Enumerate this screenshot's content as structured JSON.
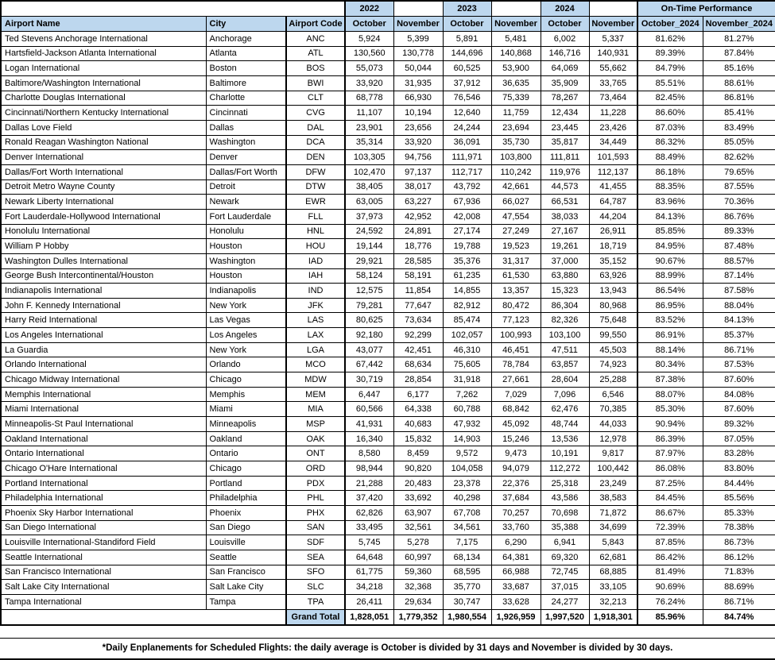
{
  "table": {
    "header": {
      "airport_name": "Airport Name",
      "city": "City",
      "airport_code": "Airport Code",
      "years": [
        "2022",
        "2023",
        "2024"
      ],
      "months": [
        "October",
        "November"
      ],
      "otp_group": "On-Time Performance",
      "otp_cols": [
        "October_2024",
        "November_2024"
      ]
    },
    "rows": [
      {
        "name": "Ted Stevens Anchorage International",
        "city": "Anchorage",
        "code": "ANC",
        "values": [
          "5,924",
          "5,399",
          "5,891",
          "5,481",
          "6,002",
          "5,337"
        ],
        "otp": [
          "81.62%",
          "81.27%"
        ]
      },
      {
        "name": "Hartsfield-Jackson Atlanta International",
        "city": "Atlanta",
        "code": "ATL",
        "values": [
          "130,560",
          "130,778",
          "144,696",
          "140,868",
          "146,716",
          "140,931"
        ],
        "otp": [
          "89.39%",
          "87.84%"
        ]
      },
      {
        "name": "Logan International",
        "city": "Boston",
        "code": "BOS",
        "values": [
          "55,073",
          "50,044",
          "60,525",
          "53,900",
          "64,069",
          "55,662"
        ],
        "otp": [
          "84.79%",
          "85.16%"
        ]
      },
      {
        "name": "Baltimore/Washington International",
        "city": "Baltimore",
        "code": "BWI",
        "values": [
          "33,920",
          "31,935",
          "37,912",
          "36,635",
          "35,909",
          "33,765"
        ],
        "otp": [
          "85.51%",
          "88.61%"
        ]
      },
      {
        "name": "Charlotte Douglas International",
        "city": "Charlotte",
        "code": "CLT",
        "values": [
          "68,778",
          "66,930",
          "76,546",
          "75,339",
          "78,267",
          "73,464"
        ],
        "otp": [
          "82.45%",
          "86.81%"
        ]
      },
      {
        "name": "Cincinnati/Northern Kentucky International",
        "city": "Cincinnati",
        "code": "CVG",
        "values": [
          "11,107",
          "10,194",
          "12,640",
          "11,759",
          "12,434",
          "11,228"
        ],
        "otp": [
          "86.60%",
          "85.41%"
        ]
      },
      {
        "name": "Dallas Love Field",
        "city": "Dallas",
        "code": "DAL",
        "values": [
          "23,901",
          "23,656",
          "24,244",
          "23,694",
          "23,445",
          "23,426"
        ],
        "otp": [
          "87.03%",
          "83.49%"
        ]
      },
      {
        "name": "Ronald Reagan Washington National",
        "city": "Washington",
        "code": "DCA",
        "values": [
          "35,314",
          "33,920",
          "36,091",
          "35,730",
          "35,817",
          "34,449"
        ],
        "otp": [
          "86.32%",
          "85.05%"
        ]
      },
      {
        "name": "Denver International",
        "city": "Denver",
        "code": "DEN",
        "values": [
          "103,305",
          "94,756",
          "111,971",
          "103,800",
          "111,811",
          "101,593"
        ],
        "otp": [
          "88.49%",
          "82.62%"
        ]
      },
      {
        "name": "Dallas/Fort Worth International",
        "city": "Dallas/Fort Worth",
        "code": "DFW",
        "values": [
          "102,470",
          "97,137",
          "112,717",
          "110,242",
          "119,976",
          "112,137"
        ],
        "otp": [
          "86.18%",
          "79.65%"
        ]
      },
      {
        "name": "Detroit Metro Wayne County",
        "city": "Detroit",
        "code": "DTW",
        "values": [
          "38,405",
          "38,017",
          "43,792",
          "42,661",
          "44,573",
          "41,455"
        ],
        "otp": [
          "88.35%",
          "87.55%"
        ]
      },
      {
        "name": "Newark Liberty International",
        "city": "Newark",
        "code": "EWR",
        "values": [
          "63,005",
          "63,227",
          "67,936",
          "66,027",
          "66,531",
          "64,787"
        ],
        "otp": [
          "83.96%",
          "70.36%"
        ]
      },
      {
        "name": "Fort Lauderdale-Hollywood International",
        "city": "Fort Lauderdale",
        "code": "FLL",
        "values": [
          "37,973",
          "42,952",
          "42,008",
          "47,554",
          "38,033",
          "44,204"
        ],
        "otp": [
          "84.13%",
          "86.76%"
        ]
      },
      {
        "name": "Honolulu International",
        "city": "Honolulu",
        "code": "HNL",
        "values": [
          "24,592",
          "24,891",
          "27,174",
          "27,249",
          "27,167",
          "26,911"
        ],
        "otp": [
          "85.85%",
          "89.33%"
        ]
      },
      {
        "name": "William P Hobby",
        "city": "Houston",
        "code": "HOU",
        "values": [
          "19,144",
          "18,776",
          "19,788",
          "19,523",
          "19,261",
          "18,719"
        ],
        "otp": [
          "84.95%",
          "87.48%"
        ]
      },
      {
        "name": "Washington Dulles International",
        "city": "Washington",
        "code": "IAD",
        "values": [
          "29,921",
          "28,585",
          "35,376",
          "31,317",
          "37,000",
          "35,152"
        ],
        "otp": [
          "90.67%",
          "88.57%"
        ]
      },
      {
        "name": "George Bush Intercontinental/Houston",
        "city": "Houston",
        "code": "IAH",
        "values": [
          "58,124",
          "58,191",
          "61,235",
          "61,530",
          "63,880",
          "63,926"
        ],
        "otp": [
          "88.99%",
          "87.14%"
        ]
      },
      {
        "name": "Indianapolis International",
        "city": "Indianapolis",
        "code": "IND",
        "values": [
          "12,575",
          "11,854",
          "14,855",
          "13,357",
          "15,323",
          "13,943"
        ],
        "otp": [
          "86.54%",
          "87.58%"
        ]
      },
      {
        "name": "John F. Kennedy International",
        "city": "New York",
        "code": "JFK",
        "values": [
          "79,281",
          "77,647",
          "82,912",
          "80,472",
          "86,304",
          "80,968"
        ],
        "otp": [
          "86.95%",
          "88.04%"
        ]
      },
      {
        "name": "Harry Reid International",
        "city": "Las Vegas",
        "code": "LAS",
        "values": [
          "80,625",
          "73,634",
          "85,474",
          "77,123",
          "82,326",
          "75,648"
        ],
        "otp": [
          "83.52%",
          "84.13%"
        ]
      },
      {
        "name": "Los Angeles International",
        "city": "Los Angeles",
        "code": "LAX",
        "values": [
          "92,180",
          "92,299",
          "102,057",
          "100,993",
          "103,100",
          "99,550"
        ],
        "otp": [
          "86.91%",
          "85.37%"
        ]
      },
      {
        "name": "La Guardia",
        "city": "New York",
        "code": "LGA",
        "values": [
          "43,077",
          "42,451",
          "46,310",
          "46,451",
          "47,511",
          "45,503"
        ],
        "otp": [
          "88.14%",
          "86.71%"
        ]
      },
      {
        "name": "Orlando International",
        "city": "Orlando",
        "code": "MCO",
        "values": [
          "67,442",
          "68,634",
          "75,605",
          "78,784",
          "63,857",
          "74,923"
        ],
        "otp": [
          "80.34%",
          "87.53%"
        ]
      },
      {
        "name": "Chicago Midway International",
        "city": "Chicago",
        "code": "MDW",
        "values": [
          "30,719",
          "28,854",
          "31,918",
          "27,661",
          "28,604",
          "25,288"
        ],
        "otp": [
          "87.38%",
          "87.60%"
        ]
      },
      {
        "name": "Memphis International",
        "city": "Memphis",
        "code": "MEM",
        "values": [
          "6,447",
          "6,177",
          "7,262",
          "7,029",
          "7,096",
          "6,546"
        ],
        "otp": [
          "88.07%",
          "84.08%"
        ]
      },
      {
        "name": "Miami International",
        "city": "Miami",
        "code": "MIA",
        "values": [
          "60,566",
          "64,338",
          "60,788",
          "68,842",
          "62,476",
          "70,385"
        ],
        "otp": [
          "85.30%",
          "87.60%"
        ]
      },
      {
        "name": "Minneapolis-St Paul International",
        "city": "Minneapolis",
        "code": "MSP",
        "values": [
          "41,931",
          "40,683",
          "47,932",
          "45,092",
          "48,744",
          "44,033"
        ],
        "otp": [
          "90.94%",
          "89.32%"
        ]
      },
      {
        "name": "Oakland International",
        "city": "Oakland",
        "code": "OAK",
        "values": [
          "16,340",
          "15,832",
          "14,903",
          "15,246",
          "13,536",
          "12,978"
        ],
        "otp": [
          "86.39%",
          "87.05%"
        ]
      },
      {
        "name": "Ontario International",
        "city": "Ontario",
        "code": "ONT",
        "values": [
          "8,580",
          "8,459",
          "9,572",
          "9,473",
          "10,191",
          "9,817"
        ],
        "otp": [
          "87.97%",
          "83.28%"
        ]
      },
      {
        "name": "Chicago O'Hare International",
        "city": "Chicago",
        "code": "ORD",
        "values": [
          "98,944",
          "90,820",
          "104,058",
          "94,079",
          "112,272",
          "100,442"
        ],
        "otp": [
          "86.08%",
          "83.80%"
        ]
      },
      {
        "name": "Portland International",
        "city": "Portland",
        "code": "PDX",
        "values": [
          "21,288",
          "20,483",
          "23,378",
          "22,376",
          "25,318",
          "23,249"
        ],
        "otp": [
          "87.25%",
          "84.44%"
        ]
      },
      {
        "name": "Philadelphia International",
        "city": "Philadelphia",
        "code": "PHL",
        "values": [
          "37,420",
          "33,692",
          "40,298",
          "37,684",
          "43,586",
          "38,583"
        ],
        "otp": [
          "84.45%",
          "85.56%"
        ]
      },
      {
        "name": "Phoenix Sky Harbor International",
        "city": "Phoenix",
        "code": "PHX",
        "values": [
          "62,826",
          "63,907",
          "67,708",
          "70,257",
          "70,698",
          "71,872"
        ],
        "otp": [
          "86.67%",
          "85.33%"
        ]
      },
      {
        "name": "San Diego International",
        "city": "San Diego",
        "code": "SAN",
        "values": [
          "33,495",
          "32,561",
          "34,561",
          "33,760",
          "35,388",
          "34,699"
        ],
        "otp": [
          "72.39%",
          "78.38%"
        ]
      },
      {
        "name": "Louisville International-Standiford Field",
        "city": "Louisville",
        "code": "SDF",
        "values": [
          "5,745",
          "5,278",
          "7,175",
          "6,290",
          "6,941",
          "5,843"
        ],
        "otp": [
          "87.85%",
          "86.73%"
        ]
      },
      {
        "name": "Seattle International",
        "city": "Seattle",
        "code": "SEA",
        "values": [
          "64,648",
          "60,997",
          "68,134",
          "64,381",
          "69,320",
          "62,681"
        ],
        "otp": [
          "86.42%",
          "86.12%"
        ]
      },
      {
        "name": "San Francisco International",
        "city": "San Francisco",
        "code": "SFO",
        "values": [
          "61,775",
          "59,360",
          "68,595",
          "66,988",
          "72,745",
          "68,885"
        ],
        "otp": [
          "81.49%",
          "71.83%"
        ]
      },
      {
        "name": "Salt Lake City International",
        "city": "Salt Lake City",
        "code": "SLC",
        "values": [
          "34,218",
          "32,368",
          "35,770",
          "33,687",
          "37,015",
          "33,105"
        ],
        "otp": [
          "90.69%",
          "88.69%"
        ]
      },
      {
        "name": "Tampa International",
        "city": "Tampa",
        "code": "TPA",
        "values": [
          "26,411",
          "29,634",
          "30,747",
          "33,628",
          "24,277",
          "32,213"
        ],
        "otp": [
          "76.24%",
          "86.71%"
        ]
      }
    ],
    "grand_total": {
      "label": "Grand Total",
      "values": [
        "1,828,051",
        "1,779,352",
        "1,980,554",
        "1,926,959",
        "1,997,520",
        "1,918,301"
      ],
      "otp": [
        "85.96%",
        "84.74%"
      ]
    }
  },
  "footnote": "*Daily Enplanements for Scheduled Flights: the daily average is October is divided by 31 days and November is divided by 30 days.",
  "colors": {
    "header_fill": "#BDD7EE",
    "grid": "#000000"
  }
}
